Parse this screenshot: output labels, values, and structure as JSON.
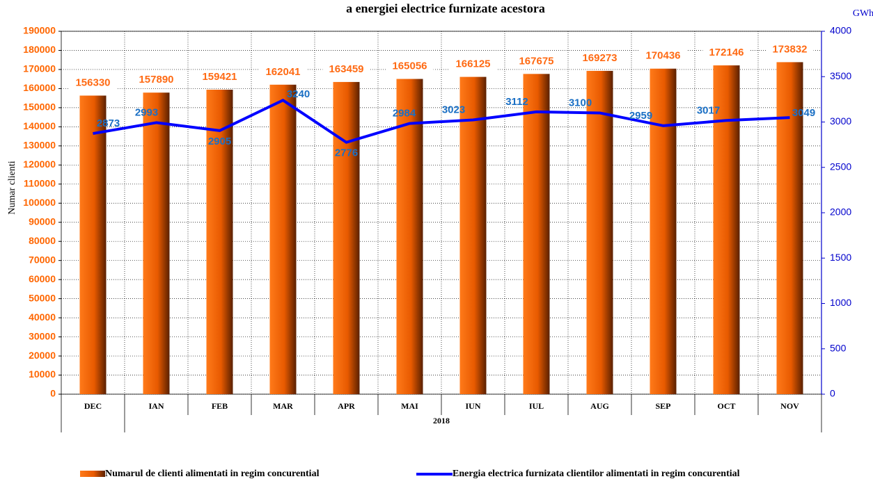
{
  "chart_data": {
    "type": "bar_line",
    "title": "a energiei electrice furnizate acestora",
    "y_label": "Numar clienti",
    "y2_label": "GWh",
    "group_label": "2018",
    "categories": [
      "DEC",
      "IAN",
      "FEB",
      "MAR",
      "APR",
      "MAI",
      "IUN",
      "IUL",
      "AUG",
      "SEP",
      "OCT",
      "NOV"
    ],
    "series": [
      {
        "name": "Numarul de clienti alimentati in regim concurential",
        "type": "bar",
        "color": "#ff6a13",
        "values": [
          156330,
          157890,
          159421,
          162041,
          163459,
          165056,
          166125,
          167675,
          169273,
          170436,
          172146,
          173832
        ]
      },
      {
        "name": "Energia electrica furnizata clientilor alimentati in regim concurential",
        "type": "line",
        "axis": "y2",
        "color": "#0000ff",
        "values": [
          2873,
          2993,
          2905,
          3240,
          2776,
          2984,
          3023,
          3112,
          3100,
          2959,
          3017,
          3049
        ]
      }
    ],
    "ylim": [
      0,
      190000
    ],
    "yticks": [
      0,
      10000,
      20000,
      30000,
      40000,
      50000,
      60000,
      70000,
      80000,
      90000,
      100000,
      110000,
      120000,
      130000,
      140000,
      150000,
      160000,
      170000,
      180000,
      190000
    ],
    "y2lim": [
      0,
      4000
    ],
    "y2ticks": [
      0,
      500,
      1000,
      1500,
      2000,
      2500,
      3000,
      3500,
      4000
    ],
    "grid": true
  }
}
